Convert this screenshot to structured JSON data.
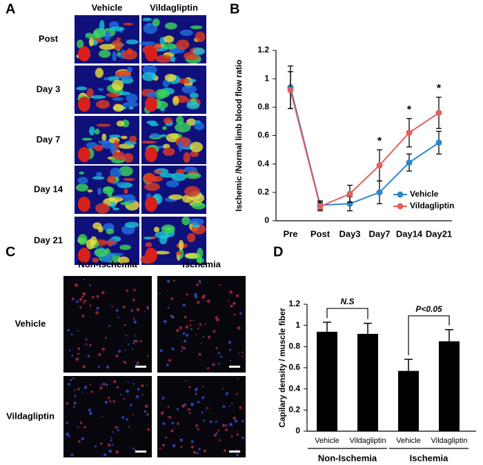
{
  "panels": {
    "a": "A",
    "b": "B",
    "c": "C",
    "d": "D"
  },
  "panel_a": {
    "columns": [
      "Vehicle",
      "Vildagliptin"
    ],
    "rows": [
      "Post",
      "Day 3",
      "Day 7",
      "Day 14",
      "Day 21"
    ]
  },
  "panel_c": {
    "columns": [
      "Non-Ischemia",
      "Ischemia"
    ],
    "rows": [
      "Vehicle",
      "Vildagliptin"
    ]
  },
  "chart_data": [
    {
      "type": "line",
      "ylabel": "Ischemic /Normal limb blood flow ratio",
      "categories": [
        "Pre",
        "Post",
        "Day3",
        "Day7",
        "Day14",
        "Day21"
      ],
      "series": [
        {
          "name": "Vehicle",
          "color": "#2e86c9",
          "values": [
            0.94,
            0.11,
            0.12,
            0.2,
            0.41,
            0.55
          ],
          "errors": [
            0.15,
            0.03,
            0.05,
            0.08,
            0.06,
            0.08
          ]
        },
        {
          "name": "Vildagliptin",
          "color": "#e0605c",
          "values": [
            0.92,
            0.1,
            0.19,
            0.39,
            0.62,
            0.76
          ],
          "errors": [
            0.13,
            0.03,
            0.06,
            0.11,
            0.1,
            0.11
          ]
        }
      ],
      "ylim": [
        0,
        1.2
      ],
      "yticks": [
        0,
        0.2,
        0.4,
        0.6,
        0.8,
        1,
        1.2
      ],
      "legend": "lower right",
      "annotations": [
        {
          "text": "*",
          "x": "Day7"
        },
        {
          "text": "*",
          "x": "Day14"
        },
        {
          "text": "*",
          "x": "Day21"
        }
      ]
    },
    {
      "type": "bar",
      "ylabel": "Capilary density / muscle fiber",
      "categories": [
        "Vehicle",
        "Vildagliptin",
        "Vehicle",
        "Vildagliptin"
      ],
      "groups": [
        "Non-Ischemia",
        "Ischemia"
      ],
      "values": [
        0.94,
        0.92,
        0.57,
        0.85
      ],
      "errors": [
        0.09,
        0.1,
        0.11,
        0.11
      ],
      "color": "#000000",
      "ylim": [
        0,
        1.2
      ],
      "yticks": [
        0,
        0.2,
        0.4,
        0.6,
        0.8,
        1,
        1.2
      ],
      "annotations": [
        {
          "text": "N.S"
        },
        {
          "text": "P<0.05"
        }
      ]
    }
  ]
}
